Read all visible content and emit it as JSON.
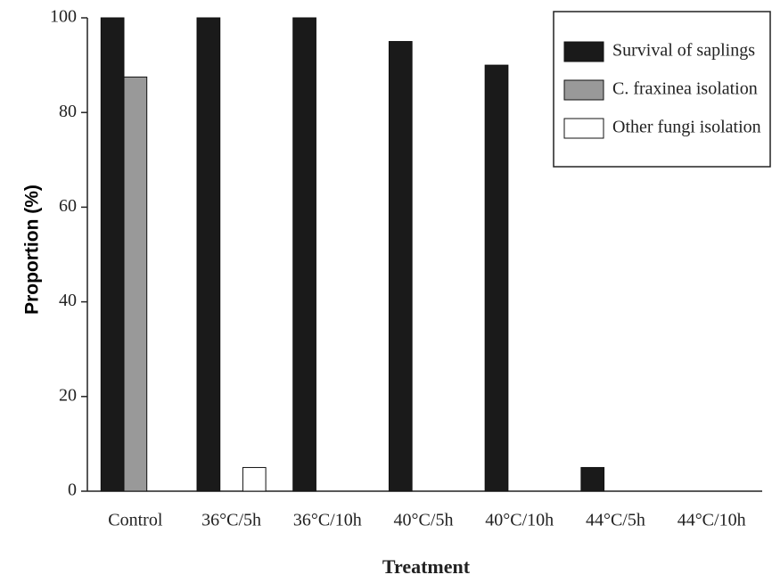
{
  "chart_data": {
    "type": "bar",
    "x_label": "Treatment",
    "y_label": "Proportion (%)",
    "categories": [
      "Control",
      "36°C/5h",
      "36°C/10h",
      "40°C/5h",
      "40°C/10h",
      "44°C/5h",
      "44°C/10h"
    ],
    "series": [
      {
        "name": "Survival of saplings",
        "color": "#1a1a1a",
        "values": [
          100,
          100,
          100,
          95,
          90,
          5,
          0
        ]
      },
      {
        "name": "C. fraxinea isolation",
        "color": "#999999",
        "values": [
          87.5,
          0,
          0,
          0,
          0,
          0,
          0
        ]
      },
      {
        "name": "Other fungi isolation",
        "color": "#ffffff",
        "values": [
          0,
          5,
          0,
          0,
          0,
          0,
          0
        ]
      }
    ],
    "ylim": [
      0,
      100
    ],
    "yticks": [
      0,
      20,
      40,
      60,
      80,
      100
    ],
    "legend": "upper right",
    "grid": false
  }
}
